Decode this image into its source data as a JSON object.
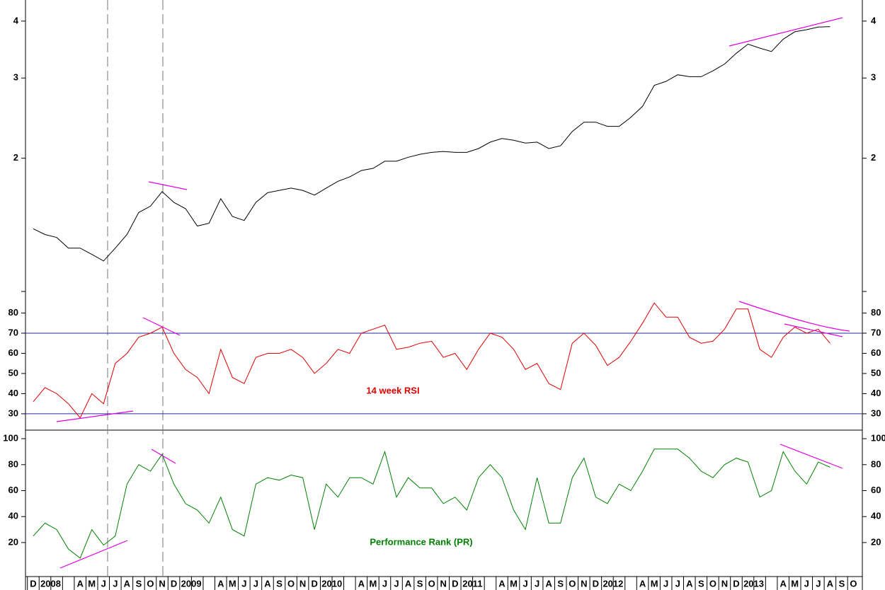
{
  "chart_data": [
    {
      "type": "line",
      "log_scale": true,
      "color": "#000000",
      "categories": [
        "D",
        "2008",
        null,
        null,
        "A",
        "M",
        "J",
        "J",
        "A",
        "S",
        "O",
        "N",
        "D",
        "2009",
        null,
        null,
        "A",
        "M",
        "J",
        "J",
        "A",
        "S",
        "O",
        "N",
        "D",
        "2010",
        null,
        null,
        "A",
        "M",
        "J",
        "J",
        "A",
        "S",
        "O",
        "N",
        "D",
        "2011",
        null,
        null,
        "A",
        "M",
        "J",
        "J",
        "A",
        "S",
        "O",
        "N",
        "D",
        "2012",
        null,
        null,
        "A",
        "M",
        "J",
        "J",
        "A",
        "S",
        "O",
        "N",
        "D",
        "2013",
        null,
        null,
        "A",
        "M",
        "J",
        "J",
        "A",
        "S",
        "O"
      ],
      "values": [
        1.4,
        1.36,
        1.34,
        1.27,
        1.27,
        1.23,
        1.19,
        1.27,
        1.36,
        1.52,
        1.57,
        1.69,
        1.6,
        1.55,
        1.42,
        1.44,
        1.63,
        1.49,
        1.46,
        1.6,
        1.68,
        1.7,
        1.72,
        1.7,
        1.66,
        1.72,
        1.78,
        1.82,
        1.88,
        1.9,
        1.97,
        1.97,
        2.01,
        2.04,
        2.06,
        2.07,
        2.06,
        2.06,
        2.1,
        2.17,
        2.21,
        2.19,
        2.16,
        2.17,
        2.1,
        2.13,
        2.29,
        2.4,
        2.4,
        2.35,
        2.35,
        2.46,
        2.6,
        2.89,
        2.95,
        3.05,
        3.02,
        3.02,
        3.11,
        3.22,
        3.4,
        3.56,
        3.49,
        3.43,
        3.65,
        3.79,
        3.83,
        3.88,
        3.89,
        null,
        null
      ],
      "ylim": [
        1.02,
        4.45
      ],
      "yticks": [
        2,
        3,
        4
      ]
    },
    {
      "type": "line",
      "color": "#e00000",
      "annotation": "14 week RSI",
      "categories": [
        "D",
        "2008",
        null,
        null,
        "A",
        "M",
        "J",
        "J",
        "A",
        "S",
        "O",
        "N",
        "D",
        "2009",
        null,
        null,
        "A",
        "M",
        "J",
        "J",
        "A",
        "S",
        "O",
        "N",
        "D",
        "2010",
        null,
        null,
        "A",
        "M",
        "J",
        "J",
        "A",
        "S",
        "O",
        "N",
        "D",
        "2011",
        null,
        null,
        "A",
        "M",
        "J",
        "J",
        "A",
        "S",
        "O",
        "N",
        "D",
        "2012",
        null,
        null,
        "A",
        "M",
        "J",
        "J",
        "A",
        "S",
        "O",
        "N",
        "D",
        "2013",
        null,
        null,
        "A",
        "M",
        "J",
        "J",
        "A",
        "S",
        "O"
      ],
      "values": [
        36,
        43,
        40,
        35,
        28,
        40,
        35,
        55,
        60,
        68,
        70,
        73,
        60,
        52,
        48,
        40,
        62,
        48,
        45,
        58,
        60,
        60,
        62,
        58,
        50,
        55,
        62,
        60,
        70,
        72,
        74,
        62,
        63,
        65,
        66,
        58,
        60,
        52,
        62,
        70,
        68,
        62,
        52,
        55,
        45,
        42,
        65,
        70,
        64,
        54,
        58,
        66,
        75,
        85,
        78,
        78,
        68,
        65,
        66,
        72,
        82,
        82,
        62,
        58,
        68,
        73,
        70,
        72,
        65,
        null,
        null
      ],
      "ylim": [
        21.9,
        90.7
      ],
      "yticks": [
        30,
        40,
        50,
        60,
        70,
        80
      ],
      "reference_lines": [
        70,
        30
      ],
      "reference_color": "#2a2a9a"
    },
    {
      "type": "line",
      "color": "#008000",
      "annotation": "Performance Rank (PR)",
      "categories": [
        "D",
        "2008",
        null,
        null,
        "A",
        "M",
        "J",
        "J",
        "A",
        "S",
        "O",
        "N",
        "D",
        "2009",
        null,
        null,
        "A",
        "M",
        "J",
        "J",
        "A",
        "S",
        "O",
        "N",
        "D",
        "2010",
        null,
        null,
        "A",
        "M",
        "J",
        "J",
        "A",
        "S",
        "O",
        "N",
        "D",
        "2011",
        null,
        null,
        "A",
        "M",
        "J",
        "J",
        "A",
        "S",
        "O",
        "N",
        "D",
        "2012",
        null,
        null,
        "A",
        "M",
        "J",
        "J",
        "A",
        "S",
        "O",
        "N",
        "D",
        "2013",
        null,
        null,
        "A",
        "M",
        "J",
        "J",
        "A",
        "S",
        "O"
      ],
      "values": [
        25,
        35,
        30,
        15,
        8,
        30,
        18,
        25,
        65,
        80,
        75,
        88,
        65,
        50,
        45,
        35,
        55,
        30,
        25,
        65,
        70,
        68,
        72,
        70,
        30,
        65,
        55,
        70,
        70,
        65,
        90,
        55,
        70,
        62,
        62,
        50,
        55,
        45,
        70,
        80,
        70,
        45,
        30,
        70,
        35,
        35,
        70,
        85,
        55,
        50,
        65,
        60,
        75,
        92,
        92,
        92,
        85,
        75,
        70,
        80,
        85,
        82,
        55,
        60,
        90,
        75,
        65,
        82,
        78,
        null,
        null
      ],
      "ylim": [
        -6.2,
        106.6
      ],
      "yticks": [
        20,
        40,
        60,
        80,
        100
      ]
    }
  ]
}
